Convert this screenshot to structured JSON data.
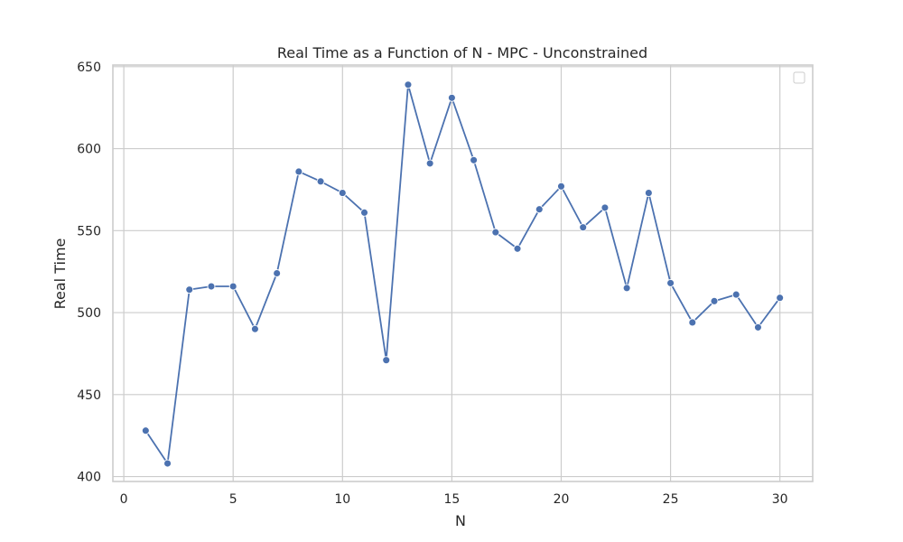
{
  "chart_data": {
    "type": "line",
    "title": "Real Time as a Function of N - MPC - Unconstrained",
    "xlabel": "N",
    "ylabel": "Real Time",
    "xlim": [
      -0.5,
      31.5
    ],
    "ylim": [
      397,
      651
    ],
    "xticks": [
      0,
      5,
      10,
      15,
      20,
      25,
      30
    ],
    "yticks": [
      400,
      450,
      500,
      550,
      600,
      650
    ],
    "grid": true,
    "legend": "top-right (empty box)",
    "series": [
      {
        "color": "#4c72b0",
        "marker": "circle",
        "x": [
          1,
          2,
          3,
          4,
          5,
          6,
          7,
          8,
          9,
          10,
          11,
          12,
          13,
          14,
          15,
          16,
          17,
          18,
          19,
          20,
          21,
          22,
          23,
          24,
          25,
          26,
          27,
          28,
          29,
          30
        ],
        "y": [
          428,
          408,
          514,
          516,
          516,
          490,
          524,
          586,
          580,
          573,
          561,
          471,
          639,
          591,
          631,
          593,
          549,
          539,
          563,
          577,
          552,
          564,
          515,
          573,
          518,
          494,
          507,
          511,
          491,
          509
        ]
      }
    ]
  }
}
